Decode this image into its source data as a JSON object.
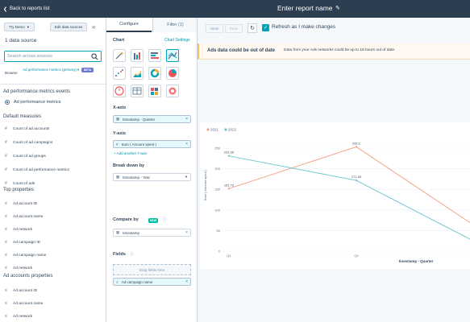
{
  "header": {
    "back_label": "Back to reports list",
    "report_name": "Enter report name"
  },
  "left_panel": {
    "try_demo_label": "Try Demo",
    "edit_sources_label": "Edit data sources",
    "data_source_count": "1 data source",
    "search_placeholder": "Search across sources",
    "browse_label": "Browse:",
    "browse_value": "Ad performance metrics (primary)",
    "beta_label": "BETA",
    "events_heading": "Ad performance metrics events",
    "event_option": "Ad performance metrics",
    "default_measures_heading": "Default measures",
    "default_measures": [
      "Count of ad accounts",
      "Count of ad campaigns",
      "Count of ad groups",
      "Count of ad performance metrics",
      "Count of ads"
    ],
    "top_properties_heading": "Top properties",
    "top_properties": [
      "Ad account ID",
      "Ad account name",
      "Ad network",
      "Ad campaign ID",
      "Ad campaign name",
      "Ad network"
    ],
    "accounts_heading": "Ad accounts properties",
    "accounts_properties": [
      "Ad account ID",
      "Ad account name",
      "Ad network"
    ]
  },
  "mid_panel": {
    "tabs": [
      {
        "label": "Configure"
      },
      {
        "label": "Filter (1)"
      }
    ],
    "chart_label": "Chart",
    "chart_settings": "Chart Settings",
    "x_axis_label": "X-axis",
    "x_axis_value": "timestamp - Quarter",
    "y_axis_label": "Y-axis",
    "y_axis_value": "Sum ( Amount spent )",
    "add_y_axis": "+ Add another Y-axis",
    "break_down_label": "Break down by",
    "break_down_value": "timestamp - Year",
    "compare_label": "Compare by",
    "new_badge": "NEW",
    "compare_value": "timestamp",
    "fields_label": "Fields",
    "drag_fields": "Drag fields here",
    "field_value": "Ad campaign name"
  },
  "right_panel": {
    "undo_label": "Undo",
    "redo_label": "Redo",
    "refresh_label": "Refresh as I make changes",
    "warning_title": "Ads data could be out of date",
    "warning_body": "Data from your Ads networks could be up to 18 hours out of date."
  },
  "colors": {
    "topbar": "#2d3e50",
    "accent": "#00a4bd",
    "series_2021": "#f2a488",
    "series_2022": "#6fc9d0"
  },
  "chart_data": {
    "type": "line",
    "categories": [
      "Q1",
      "Q2",
      "Q3"
    ],
    "series": [
      {
        "name": "2021",
        "values": [
          151.73,
          253.1,
          47
        ]
      },
      {
        "name": "2022",
        "values": [
          231.09,
          171.53,
          12
        ]
      }
    ],
    "data_labels": [
      "231.09",
      "151.73",
      "253.1",
      "171.53"
    ],
    "ylabel": "Sum ( Amount spent )",
    "xlabel": "timestamp - Quarter",
    "ylim": [
      0,
      250
    ],
    "yticks": [
      0,
      50,
      100,
      150,
      200,
      250
    ],
    "grid": true,
    "legend_position": "top-left"
  }
}
